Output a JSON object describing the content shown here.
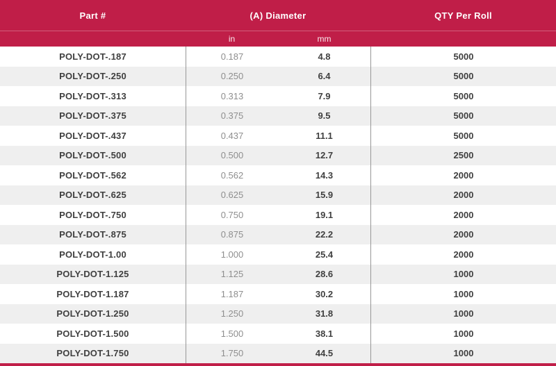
{
  "table": {
    "header": {
      "part_label": "Part #",
      "diameter_label": "(A) Diameter",
      "qty_label": "QTY Per Roll",
      "sub_in_label": "in",
      "sub_mm_label": "mm"
    },
    "rows": [
      {
        "part": "POLY-DOT-.187",
        "in": "0.187",
        "mm": "4.8",
        "qty": "5000"
      },
      {
        "part": "POLY-DOT-.250",
        "in": "0.250",
        "mm": "6.4",
        "qty": "5000"
      },
      {
        "part": "POLY-DOT-.313",
        "in": "0.313",
        "mm": "7.9",
        "qty": "5000"
      },
      {
        "part": "POLY-DOT-.375",
        "in": "0.375",
        "mm": "9.5",
        "qty": "5000"
      },
      {
        "part": "POLY-DOT-.437",
        "in": "0.437",
        "mm": "11.1",
        "qty": "5000"
      },
      {
        "part": "POLY-DOT-.500",
        "in": "0.500",
        "mm": "12.7",
        "qty": "2500"
      },
      {
        "part": "POLY-DOT-.562",
        "in": "0.562",
        "mm": "14.3",
        "qty": "2000"
      },
      {
        "part": "POLY-DOT-.625",
        "in": "0.625",
        "mm": "15.9",
        "qty": "2000"
      },
      {
        "part": "POLY-DOT-.750",
        "in": "0.750",
        "mm": "19.1",
        "qty": "2000"
      },
      {
        "part": "POLY-DOT-.875",
        "in": "0.875",
        "mm": "22.2",
        "qty": "2000"
      },
      {
        "part": "POLY-DOT-1.00",
        "in": "1.000",
        "mm": "25.4",
        "qty": "2000"
      },
      {
        "part": "POLY-DOT-1.125",
        "in": "1.125",
        "mm": "28.6",
        "qty": "1000"
      },
      {
        "part": "POLY-DOT-1.187",
        "in": "1.187",
        "mm": "30.2",
        "qty": "1000"
      },
      {
        "part": "POLY-DOT-1.250",
        "in": "1.250",
        "mm": "31.8",
        "qty": "1000"
      },
      {
        "part": "POLY-DOT-1.500",
        "in": "1.500",
        "mm": "38.1",
        "qty": "1000"
      },
      {
        "part": "POLY-DOT-1.750",
        "in": "1.750",
        "mm": "44.5",
        "qty": "1000"
      }
    ]
  },
  "colors": {
    "header_bg": "#c01e48",
    "header_separator": "#d05f7b",
    "stripe_bg": "#efefef",
    "divider": "#969696",
    "text_dark": "#3f3f3f",
    "text_light": "#8e8e8e"
  }
}
